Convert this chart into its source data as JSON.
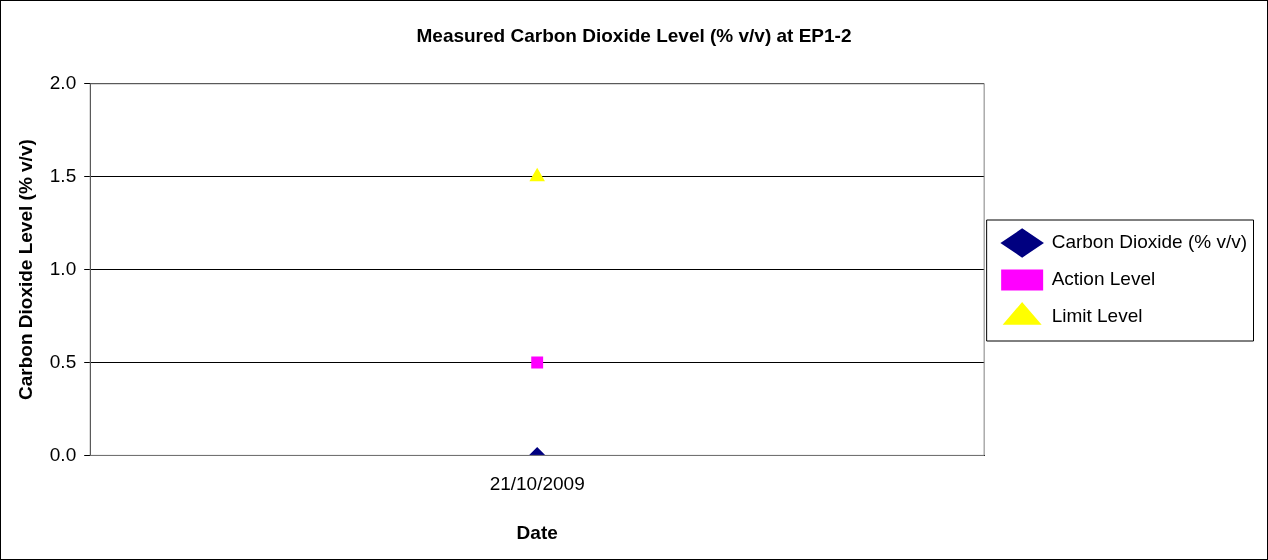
{
  "chart_data": {
    "type": "line",
    "title": "Measured Carbon Dioxide Level (% v/v) at EP1-2",
    "xlabel": "Date",
    "ylabel": "Carbon Dioxide Level (% v/v)",
    "categories": [
      "21/10/2009"
    ],
    "series": [
      {
        "name": "Carbon Dioxide (% v/v)",
        "color": "#000080",
        "values": [
          0
        ],
        "marker": "diamond"
      },
      {
        "name": "Action Level",
        "color": "#ff00ff",
        "values": [
          0.5
        ],
        "marker": "square"
      },
      {
        "name": "Limit Level",
        "color": "#ffff00",
        "values": [
          1.5
        ],
        "marker": "triangle"
      }
    ],
    "ylim": [
      0,
      2
    ],
    "yticks": [
      {
        "value": 0,
        "label": "0.0"
      },
      {
        "value": 0.5,
        "label": "0.5"
      },
      {
        "value": 1,
        "label": "1.0"
      },
      {
        "value": 1.5,
        "label": "1.5"
      },
      {
        "value": 2,
        "label": "2.0"
      }
    ],
    "grid": "y",
    "legend": "right"
  }
}
